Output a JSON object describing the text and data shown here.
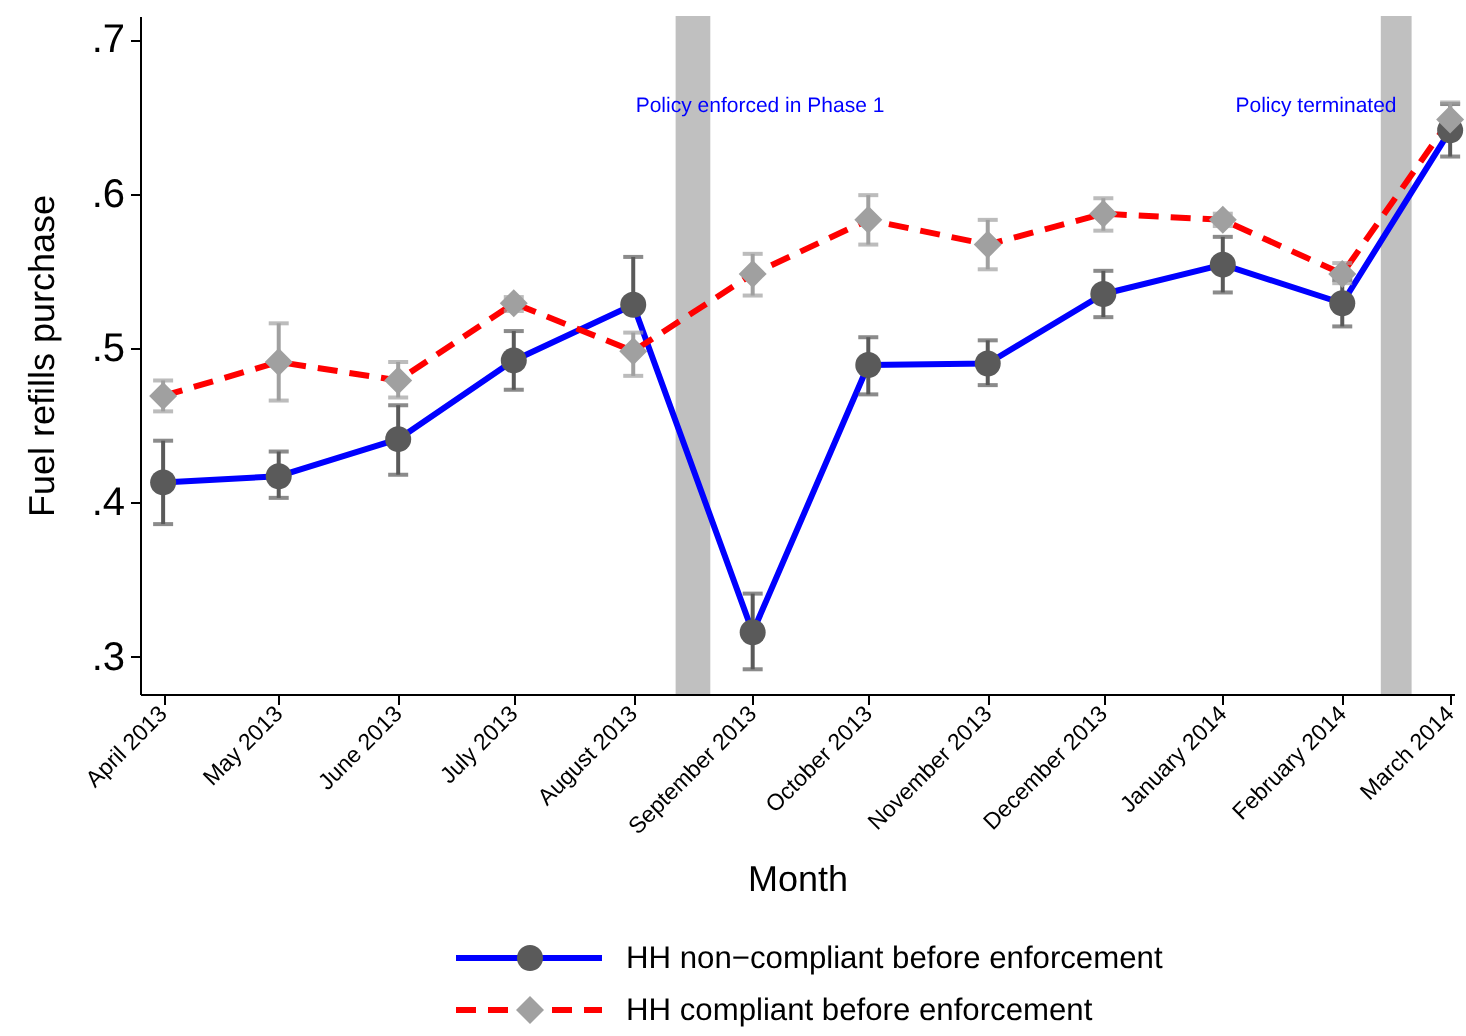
{
  "chart_data": {
    "type": "line",
    "xlabel": "Month",
    "ylabel": "Fuel refills purchase",
    "x": [
      "2013-04",
      "2013-05",
      "2013-06",
      "2013-07",
      "2013-08",
      "2013-09",
      "2013-10",
      "2013-11",
      "2013-12",
      "2014-01",
      "2014-02",
      "2014-03"
    ],
    "xlim": [
      "2013-03-26",
      "2014-03-02"
    ],
    "xticks": [
      {
        "value": "2013-04",
        "label": "April 2013"
      },
      {
        "value": "2013-05",
        "label": "May 2013"
      },
      {
        "value": "2013-06",
        "label": "June 2013"
      },
      {
        "value": "2013-07",
        "label": "July 2013"
      },
      {
        "value": "2013-08",
        "label": "August 2013"
      },
      {
        "value": "2013-09",
        "label": "September 2013"
      },
      {
        "value": "2013-10",
        "label": "October 2013"
      },
      {
        "value": "2013-11",
        "label": "November 2013"
      },
      {
        "value": "2013-12",
        "label": "December 2013"
      },
      {
        "value": "2014-01",
        "label": "January 2014"
      },
      {
        "value": "2014-02",
        "label": "February 2014"
      },
      {
        "value": "2014-03",
        "label": "March 2014"
      }
    ],
    "ylim": [
      0.276,
      0.715
    ],
    "yticks": [
      {
        "value": 0.3,
        "label": ".3"
      },
      {
        "value": 0.4,
        "label": ".4"
      },
      {
        "value": 0.5,
        "label": ".5"
      },
      {
        "value": 0.6,
        "label": ".6"
      },
      {
        "value": 0.7,
        "label": ".7"
      }
    ],
    "series": [
      {
        "name": "HH non−compliant before enforcement",
        "color": "#0000ff",
        "line_style": "solid",
        "marker": "circle",
        "colors": [
          "#5a5a5a",
          "#5a5a5a",
          "#5a5a5a",
          "#5a5a5a",
          "#5a5a5a",
          "#5a5a5a",
          "#5a5a5a",
          "#5a5a5a",
          "#5a5a5a",
          "#5a5a5a",
          "#5a5a5a",
          "#5a5a5a"
        ],
        "values": [
          0.413,
          0.417,
          0.441,
          0.492,
          0.528,
          0.316,
          0.489,
          0.49,
          0.535,
          0.554,
          0.529,
          0.641
        ],
        "errors": [
          [
            0.386,
            0.44
          ],
          [
            0.403,
            0.433
          ],
          [
            0.418,
            0.463
          ],
          [
            0.473,
            0.511
          ],
          [
            0.528,
            0.559
          ],
          [
            0.292,
            0.341
          ],
          [
            0.47,
            0.507
          ],
          [
            0.476,
            0.505
          ],
          [
            0.52,
            0.55
          ],
          [
            0.536,
            0.572
          ],
          [
            0.514,
            0.544
          ],
          [
            0.624,
            0.658
          ]
        ]
      },
      {
        "name": "HH compliant before enforcement",
        "color": "#ff0000",
        "line_style": "dashed",
        "marker": "diamond",
        "colors": [
          "#a0a0a0",
          "#a0a0a0",
          "#a0a0a0",
          "#a0a0a0",
          "#a0a0a0",
          "#a0a0a0",
          "#a0a0a0",
          "#a0a0a0",
          "#a0a0a0",
          "#a0a0a0",
          "#a0a0a0",
          "#a0a0a0"
        ],
        "values": [
          0.469,
          0.491,
          0.479,
          0.529,
          0.498,
          0.548,
          0.583,
          0.567,
          0.587,
          0.583,
          0.548,
          0.648
        ],
        "errors": [
          [
            0.459,
            0.479
          ],
          [
            0.466,
            0.516
          ],
          [
            0.468,
            0.491
          ],
          [
            0.524,
            0.533
          ],
          [
            0.482,
            0.51
          ],
          [
            0.534,
            0.561
          ],
          [
            0.567,
            0.599
          ],
          [
            0.551,
            0.583
          ],
          [
            0.576,
            0.597
          ],
          [
            0.579,
            0.587
          ],
          [
            0.542,
            0.555
          ],
          [
            0.637,
            0.659
          ]
        ]
      }
    ],
    "bands": [
      {
        "axis": "x",
        "from": "2013-08-12",
        "to": "2013-08-21",
        "color": "#c0c0c0"
      },
      {
        "axis": "x",
        "from": "2014-02-11",
        "to": "2014-02-19",
        "color": "#c0c0c0"
      }
    ],
    "annotations": [
      "Policy enforced in Phase 1",
      "Policy terminated"
    ],
    "legend": "bottom"
  }
}
